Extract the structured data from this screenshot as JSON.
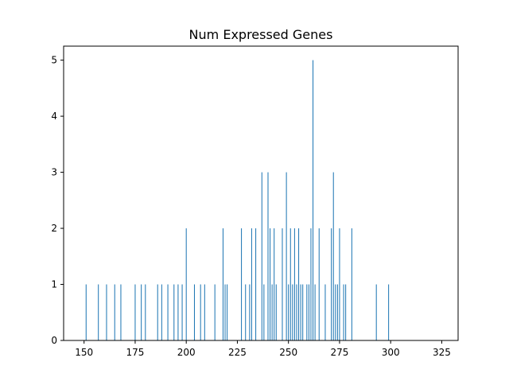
{
  "chart_data": {
    "type": "bar",
    "title": "Num Expressed Genes",
    "xlabel": "",
    "ylabel": "",
    "xlim": [
      140,
      333
    ],
    "ylim": [
      0,
      5.25
    ],
    "xticks": [
      150,
      175,
      200,
      225,
      250,
      275,
      300,
      325
    ],
    "yticks": [
      0,
      1,
      2,
      3,
      4,
      5
    ],
    "grid": false,
    "legend": "none",
    "bar_color": "#1f77b4",
    "bar_width": 0.4,
    "x": [
      151,
      157,
      161,
      165,
      168,
      175,
      178,
      180,
      186,
      188,
      191,
      194,
      196,
      198,
      200,
      204,
      207,
      209,
      214,
      218,
      219,
      220,
      227,
      229,
      231,
      232,
      234,
      237,
      238,
      240,
      241,
      242,
      243,
      244,
      247,
      249,
      250,
      251,
      252,
      253,
      254,
      255,
      256,
      257,
      259,
      260,
      261,
      262,
      263,
      265,
      268,
      271,
      272,
      273,
      274,
      275,
      277,
      278,
      281,
      293,
      299
    ],
    "values": [
      1,
      1,
      1,
      1,
      1,
      1,
      1,
      1,
      1,
      1,
      1,
      1,
      1,
      1,
      2,
      1,
      1,
      1,
      1,
      2,
      1,
      1,
      2,
      1,
      1,
      2,
      2,
      3,
      1,
      3,
      2,
      1,
      2,
      1,
      2,
      3,
      1,
      2,
      1,
      2,
      1,
      2,
      1,
      1,
      1,
      1,
      2,
      5,
      1,
      2,
      1,
      2,
      3,
      1,
      1,
      2,
      1,
      1,
      2,
      1,
      1
    ]
  }
}
